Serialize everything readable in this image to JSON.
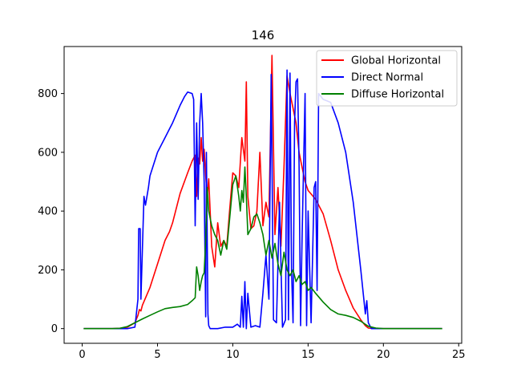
{
  "chart_data": {
    "type": "line",
    "title": "146",
    "xlabel": "",
    "ylabel": "",
    "xlim": [
      -1.2,
      25.2
    ],
    "ylim": [
      -50,
      960
    ],
    "xticks": [
      0,
      5,
      10,
      15,
      20,
      25
    ],
    "yticks": [
      0,
      200,
      400,
      600,
      800
    ],
    "grid": false,
    "legend_position": "top-right",
    "series": [
      {
        "name": "Global Horizontal",
        "color": "#ff0000",
        "points": [
          [
            0.1,
            0
          ],
          [
            1,
            0
          ],
          [
            2,
            0
          ],
          [
            2.5,
            1
          ],
          [
            3,
            5
          ],
          [
            3.5,
            20
          ],
          [
            3.7,
            45
          ],
          [
            3.8,
            65
          ],
          [
            3.9,
            60
          ],
          [
            4,
            80
          ],
          [
            4.5,
            140
          ],
          [
            5,
            220
          ],
          [
            5.5,
            300
          ],
          [
            5.8,
            330
          ],
          [
            6,
            360
          ],
          [
            6.5,
            460
          ],
          [
            7,
            530
          ],
          [
            7.3,
            570
          ],
          [
            7.5,
            590
          ],
          [
            7.6,
            450
          ],
          [
            7.7,
            580
          ],
          [
            7.8,
            560
          ],
          [
            7.9,
            650
          ],
          [
            8,
            570
          ],
          [
            8.1,
            610
          ],
          [
            8.2,
            520
          ],
          [
            8.3,
            450
          ],
          [
            8.4,
            510
          ],
          [
            8.6,
            280
          ],
          [
            8.8,
            210
          ],
          [
            9,
            360
          ],
          [
            9.2,
            280
          ],
          [
            9.4,
            300
          ],
          [
            9.6,
            280
          ],
          [
            9.8,
            410
          ],
          [
            10,
            530
          ],
          [
            10.2,
            520
          ],
          [
            10.4,
            480
          ],
          [
            10.6,
            650
          ],
          [
            10.8,
            570
          ],
          [
            10.9,
            840
          ],
          [
            11,
            450
          ],
          [
            11.2,
            340
          ],
          [
            11.4,
            350
          ],
          [
            11.6,
            400
          ],
          [
            11.8,
            600
          ],
          [
            12,
            350
          ],
          [
            12.2,
            430
          ],
          [
            12.4,
            380
          ],
          [
            12.6,
            930
          ],
          [
            12.8,
            320
          ],
          [
            13,
            480
          ],
          [
            13.2,
            280
          ],
          [
            13.4,
            550
          ],
          [
            13.6,
            860
          ],
          [
            13.8,
            800
          ],
          [
            14,
            750
          ],
          [
            14.2,
            700
          ],
          [
            14.4,
            600
          ],
          [
            14.6,
            550
          ],
          [
            14.8,
            500
          ],
          [
            15,
            470
          ],
          [
            15.5,
            440
          ],
          [
            16,
            390
          ],
          [
            16.5,
            300
          ],
          [
            17,
            200
          ],
          [
            17.5,
            130
          ],
          [
            18,
            70
          ],
          [
            18.5,
            30
          ],
          [
            18.8,
            10
          ],
          [
            19,
            2
          ],
          [
            19.5,
            0
          ],
          [
            20,
            0
          ],
          [
            22,
            0
          ],
          [
            23.9,
            0
          ]
        ]
      },
      {
        "name": "Direct Normal",
        "color": "#0000ff",
        "points": [
          [
            0.1,
            0
          ],
          [
            1,
            0
          ],
          [
            2,
            0
          ],
          [
            3,
            0
          ],
          [
            3.5,
            5
          ],
          [
            3.7,
            100
          ],
          [
            3.75,
            340
          ],
          [
            3.85,
            340
          ],
          [
            3.9,
            100
          ],
          [
            4.1,
            450
          ],
          [
            4.2,
            420
          ],
          [
            4.4,
            480
          ],
          [
            4.5,
            520
          ],
          [
            5,
            600
          ],
          [
            5.5,
            650
          ],
          [
            5.8,
            680
          ],
          [
            6,
            700
          ],
          [
            6.5,
            760
          ],
          [
            6.8,
            790
          ],
          [
            7,
            805
          ],
          [
            7.3,
            800
          ],
          [
            7.4,
            780
          ],
          [
            7.5,
            350
          ],
          [
            7.6,
            700
          ],
          [
            7.7,
            440
          ],
          [
            7.8,
            700
          ],
          [
            7.9,
            800
          ],
          [
            8,
            700
          ],
          [
            8.1,
            500
          ],
          [
            8.2,
            40
          ],
          [
            8.25,
            600
          ],
          [
            8.35,
            50
          ],
          [
            8.4,
            10
          ],
          [
            8.5,
            0
          ],
          [
            9,
            0
          ],
          [
            9.5,
            5
          ],
          [
            10,
            5
          ],
          [
            10.3,
            15
          ],
          [
            10.5,
            5
          ],
          [
            10.6,
            110
          ],
          [
            10.7,
            5
          ],
          [
            10.8,
            160
          ],
          [
            10.9,
            0
          ],
          [
            11,
            120
          ],
          [
            11.2,
            5
          ],
          [
            11.5,
            10
          ],
          [
            11.8,
            5
          ],
          [
            12,
            120
          ],
          [
            12.2,
            250
          ],
          [
            12.4,
            100
          ],
          [
            12.55,
            865
          ],
          [
            12.7,
            30
          ],
          [
            12.9,
            20
          ],
          [
            13.1,
            430
          ],
          [
            13.3,
            5
          ],
          [
            13.5,
            30
          ],
          [
            13.6,
            880
          ],
          [
            13.7,
            30
          ],
          [
            13.8,
            870
          ],
          [
            13.9,
            200
          ],
          [
            14,
            20
          ],
          [
            14.1,
            700
          ],
          [
            14.2,
            840
          ],
          [
            14.3,
            850
          ],
          [
            14.4,
            560
          ],
          [
            14.5,
            10
          ],
          [
            14.6,
            300
          ],
          [
            14.8,
            800
          ],
          [
            14.9,
            10
          ],
          [
            15,
            400
          ],
          [
            15.2,
            20
          ],
          [
            15.4,
            480
          ],
          [
            15.5,
            500
          ],
          [
            15.6,
            130
          ],
          [
            15.7,
            800
          ],
          [
            16,
            780
          ],
          [
            16.5,
            770
          ],
          [
            17,
            700
          ],
          [
            17.5,
            600
          ],
          [
            18,
            430
          ],
          [
            18.5,
            200
          ],
          [
            18.8,
            50
          ],
          [
            18.9,
            95
          ],
          [
            19,
            20
          ],
          [
            19.2,
            0
          ],
          [
            20,
            0
          ],
          [
            22,
            0
          ],
          [
            23.9,
            0
          ]
        ]
      },
      {
        "name": "Diffuse Horizontal",
        "color": "#008000",
        "points": [
          [
            0.1,
            0
          ],
          [
            1,
            0
          ],
          [
            2,
            0
          ],
          [
            2.5,
            1
          ],
          [
            3,
            7
          ],
          [
            3.5,
            20
          ],
          [
            4,
            33
          ],
          [
            4.5,
            45
          ],
          [
            5,
            57
          ],
          [
            5.5,
            68
          ],
          [
            6,
            72
          ],
          [
            6.5,
            75
          ],
          [
            7,
            82
          ],
          [
            7.3,
            95
          ],
          [
            7.5,
            105
          ],
          [
            7.6,
            210
          ],
          [
            7.7,
            180
          ],
          [
            7.8,
            130
          ],
          [
            7.9,
            160
          ],
          [
            8,
            180
          ],
          [
            8.1,
            190
          ],
          [
            8.2,
            300
          ],
          [
            8.3,
            480
          ],
          [
            8.4,
            400
          ],
          [
            8.6,
            350
          ],
          [
            8.8,
            320
          ],
          [
            9,
            300
          ],
          [
            9.2,
            250
          ],
          [
            9.4,
            300
          ],
          [
            9.6,
            270
          ],
          [
            9.8,
            380
          ],
          [
            10,
            490
          ],
          [
            10.2,
            520
          ],
          [
            10.4,
            450
          ],
          [
            10.5,
            400
          ],
          [
            10.6,
            470
          ],
          [
            10.7,
            430
          ],
          [
            10.8,
            550
          ],
          [
            10.9,
            450
          ],
          [
            11,
            320
          ],
          [
            11.2,
            340
          ],
          [
            11.4,
            380
          ],
          [
            11.6,
            390
          ],
          [
            11.8,
            360
          ],
          [
            12,
            320
          ],
          [
            12.2,
            250
          ],
          [
            12.4,
            300
          ],
          [
            12.6,
            240
          ],
          [
            12.8,
            290
          ],
          [
            13,
            220
          ],
          [
            13.2,
            180
          ],
          [
            13.4,
            260
          ],
          [
            13.6,
            200
          ],
          [
            13.8,
            180
          ],
          [
            14,
            200
          ],
          [
            14.2,
            160
          ],
          [
            14.4,
            180
          ],
          [
            14.6,
            150
          ],
          [
            14.8,
            160
          ],
          [
            15,
            130
          ],
          [
            15.2,
            140
          ],
          [
            15.5,
            120
          ],
          [
            16,
            90
          ],
          [
            16.5,
            65
          ],
          [
            17,
            50
          ],
          [
            17.5,
            45
          ],
          [
            18,
            38
          ],
          [
            18.5,
            25
          ],
          [
            19,
            8
          ],
          [
            19.5,
            2
          ],
          [
            20,
            0
          ],
          [
            22,
            0
          ],
          [
            23.9,
            0
          ]
        ]
      }
    ]
  }
}
